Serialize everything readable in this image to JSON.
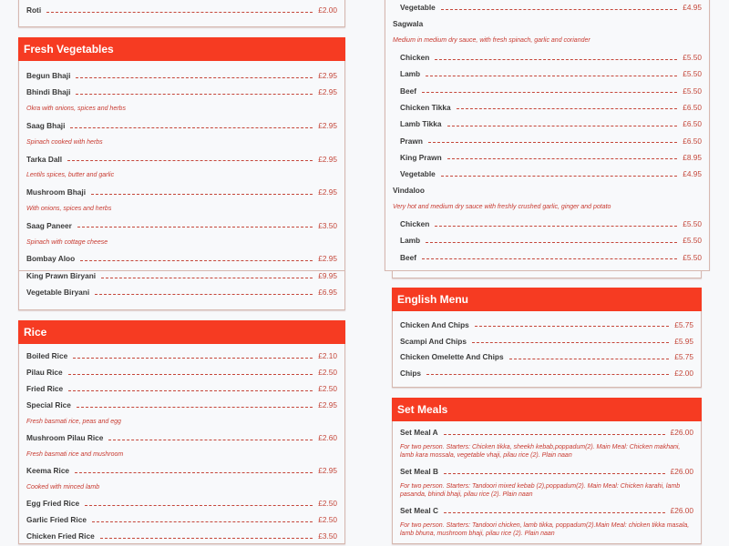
{
  "colors": {
    "header": "#f63b22",
    "price": "#c4473a",
    "description": "#c83a30",
    "background": "#f7f8fa"
  },
  "top_left_cards": [
    {
      "title": "",
      "items": [
        {
          "name": "Roti",
          "price": "£2.00"
        }
      ]
    },
    {
      "title": "Fresh Vegetables",
      "items": [
        {
          "name": "Begun Bhaji",
          "price": "£2.95"
        },
        {
          "name": "Bhindi Bhaji",
          "price": "£2.95"
        },
        {
          "desc": "Okra with onions, spices and herbs"
        },
        {
          "name": "Saag Bhaji",
          "price": "£2.95"
        },
        {
          "desc": "Spinach cooked with herbs"
        },
        {
          "name": "Tarka Dall",
          "price": "£2.95"
        },
        {
          "desc": "Lentils spices, butter and garlic"
        },
        {
          "name": "Mushroom Bhaji",
          "price": "£2.95"
        },
        {
          "desc": "With onions, spices and herbs"
        },
        {
          "name": "Saag Paneer",
          "price": "£3.50"
        },
        {
          "desc": "Spinach with cottage cheese"
        },
        {
          "name": "Bombay Aloo",
          "price": "£2.95"
        }
      ]
    }
  ],
  "top_right_cards": [
    {
      "title": "",
      "items": [
        {
          "name": "Vegetable",
          "price": "£4.95",
          "indent": true
        },
        {
          "heading": "Sagwala"
        },
        {
          "desc": "Medium in medium dry sauce, with fresh spinach, garlic and coriander"
        },
        {
          "name": "Chicken",
          "price": "£5.50",
          "indent": true
        },
        {
          "name": "Lamb",
          "price": "£5.50",
          "indent": true
        },
        {
          "name": "Beef",
          "price": "£5.50",
          "indent": true
        },
        {
          "name": "Chicken Tikka",
          "price": "£6.50",
          "indent": true
        },
        {
          "name": "Lamb Tikka",
          "price": "£6.50",
          "indent": true
        },
        {
          "name": "Prawn",
          "price": "£6.50",
          "indent": true
        },
        {
          "name": "King Prawn",
          "price": "£8.95",
          "indent": true
        },
        {
          "name": "Vegetable",
          "price": "£4.95",
          "indent": true
        },
        {
          "heading": "Vindaloo"
        },
        {
          "desc": "Very hot and medium dry sauce with freshly crushed garlic, ginger and potato"
        },
        {
          "name": "Chicken",
          "price": "£5.50",
          "indent": true
        },
        {
          "name": "Lamb",
          "price": "£5.50",
          "indent": true
        },
        {
          "name": "Beef",
          "price": "£5.50",
          "indent": true
        }
      ]
    }
  ],
  "bottom_left_cards": [
    {
      "title": "",
      "items": [
        {
          "name": "King Prawn Biryani",
          "price": "£9.95"
        },
        {
          "name": "Vegetable Biryani",
          "price": "£6.95"
        }
      ]
    },
    {
      "title": "Rice",
      "items": [
        {
          "name": "Boiled Rice",
          "price": "£2.10"
        },
        {
          "name": "Pilau Rice",
          "price": "£2.50"
        },
        {
          "name": "Fried Rice",
          "price": "£2.50"
        },
        {
          "name": "Special Rice",
          "price": "£2.95"
        },
        {
          "desc": "Fresh basmati rice, peas and egg"
        },
        {
          "name": "Mushroom Pilau Rice",
          "price": "£2.60"
        },
        {
          "desc": "Fresh basmati rice and mushroom"
        },
        {
          "name": "Keema Rice",
          "price": "£2.95"
        },
        {
          "desc": "Cooked with minced lamb"
        },
        {
          "name": "Egg Fried Rice",
          "price": "£2.50"
        },
        {
          "name": "Garlic Fried Rice",
          "price": "£2.50"
        },
        {
          "name": "Chicken Fried Rice",
          "price": "£3.50"
        }
      ]
    }
  ],
  "bottom_right_cards": [
    {
      "title": "",
      "items": []
    },
    {
      "title": "English Menu",
      "items": [
        {
          "name": "Chicken And Chips",
          "price": "£5.75"
        },
        {
          "name": "Scampi And Chips",
          "price": "£5.95"
        },
        {
          "name": "Chicken Omelette And Chips",
          "price": "£5.75"
        },
        {
          "name": "Chips",
          "price": "£2.00"
        }
      ]
    },
    {
      "title": "Set Meals",
      "items": [
        {
          "name": "Set Meal A",
          "price": "£26.00"
        },
        {
          "desc": "For two person. Starters: Chicken tikka, sheekh kebab,poppadum(2). Main Meal: Chicken makhani, lamb kara mossala, vegetable vhaji, pilau rice (2). Plain naan",
          "multi": true
        },
        {
          "name": "Set Meal B",
          "price": "£26.00"
        },
        {
          "desc": "For two person. Starters: Tandoori mixed kebab (2),poppadum(2). Main Meal: Chicken karahi, lamb pasanda, bhindi bhaji, pilau rice (2). Plain naan",
          "multi": true
        },
        {
          "name": "Set Meal C",
          "price": "£26.00"
        },
        {
          "desc": "For two person. Starters: Tandoori chicken, lamb tikka, poppadum(2).Main Meal: chicken tikka masala, lamb bhuna, mushroom bhaji, pilau rice (2). Plain naan",
          "multi": true
        }
      ]
    }
  ]
}
